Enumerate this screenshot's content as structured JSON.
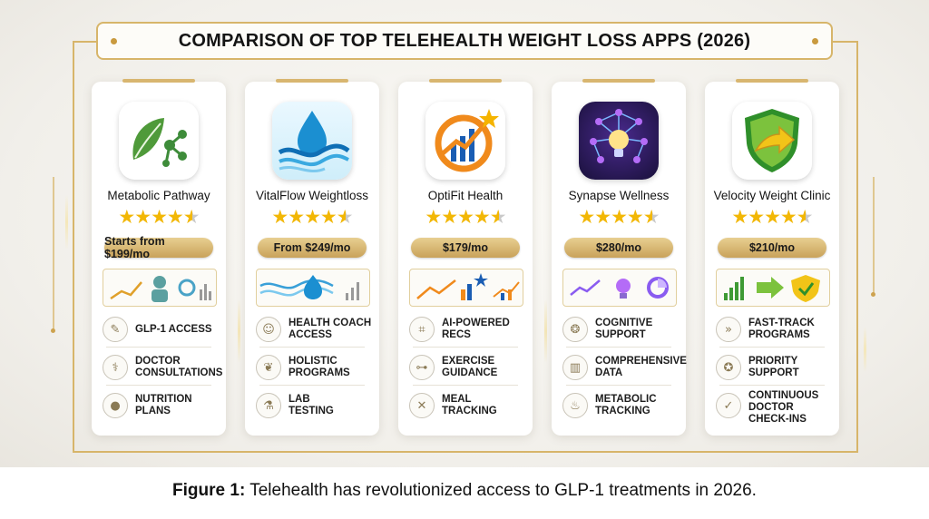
{
  "title": "COMPARISON OF TOP TELEHEALTH WEIGHT LOSS APPS (2026)",
  "caption": {
    "label": "Figure 1:",
    "text": " Telehealth has revolutionized access to GLP-1 treatments in 2026."
  },
  "colors": {
    "accent_gold": "#d7b56a",
    "star": "#f2b705",
    "price_pill": "#d8b670"
  },
  "apps": [
    {
      "name": "Metabolic Pathway",
      "icon": "leaf-molecule-icon",
      "rating_stars": 4.5,
      "price": "Starts from $199/mo",
      "banner_icons": [
        "line-chart-icon",
        "doctor-icon",
        "gauge-icon",
        "bar-chart-icon"
      ],
      "features": [
        {
          "icon": "pen-icon",
          "label": "GLP-1 ACCESS"
        },
        {
          "icon": "doctor-icon",
          "label": "DOCTOR\nCONSULTATIONS"
        },
        {
          "icon": "apple-icon",
          "label": "NUTRITION\nPLANS"
        }
      ]
    },
    {
      "name": "VitalFlow Weightloss",
      "icon": "water-drop-waves-icon",
      "rating_stars": 4.5,
      "price": "From $249/mo",
      "banner_icons": [
        "waves-icon",
        "water-drop-icon",
        "bar-chart-icon"
      ],
      "features": [
        {
          "icon": "coach-icon",
          "label": "HEALTH COACH\nACCESS"
        },
        {
          "icon": "leaf-icon",
          "label": "HOLISTIC\nPROGRAMS"
        },
        {
          "icon": "flask-icon",
          "label": "LAB\nTESTING"
        }
      ]
    },
    {
      "name": "OptiFit Health",
      "icon": "growth-chart-star-icon",
      "rating_stars": 4.5,
      "price": "$179/mo",
      "banner_icons": [
        "line-chart-icon",
        "star-icon",
        "bar-chart-icon"
      ],
      "features": [
        {
          "icon": "chip-icon",
          "label": "AI-POWERED\nRECS"
        },
        {
          "icon": "dumbbell-icon",
          "label": "EXERCISE\nGUIDANCE"
        },
        {
          "icon": "utensils-icon",
          "label": "MEAL\nTRACKING"
        }
      ]
    },
    {
      "name": "Synapse Wellness",
      "icon": "neural-lightbulb-icon",
      "rating_stars": 4.5,
      "price": "$280/mo",
      "banner_icons": [
        "line-chart-icon",
        "lightbulb-icon",
        "pie-chart-icon"
      ],
      "features": [
        {
          "icon": "brain-icon",
          "label": "COGNITIVE\nSUPPORT"
        },
        {
          "icon": "data-chart-icon",
          "label": "COMPREHENSIVE\nDATA"
        },
        {
          "icon": "flame-icon",
          "label": "METABOLIC\nTRACKING"
        }
      ]
    },
    {
      "name": "Velocity Weight Clinic",
      "icon": "shield-arrow-icon",
      "rating_stars": 4.5,
      "price": "$210/mo",
      "banner_icons": [
        "bar-chart-icon",
        "arrows-icon",
        "shield-check-icon"
      ],
      "features": [
        {
          "icon": "fast-forward-icon",
          "label": "FAST-TRACK\nPROGRAMS"
        },
        {
          "icon": "award-icon",
          "label": "PRIORITY\nSUPPORT"
        },
        {
          "icon": "shield-check-icon",
          "label": "CONTINUOUS\nDOCTOR\nCHECK-INS"
        }
      ]
    }
  ]
}
